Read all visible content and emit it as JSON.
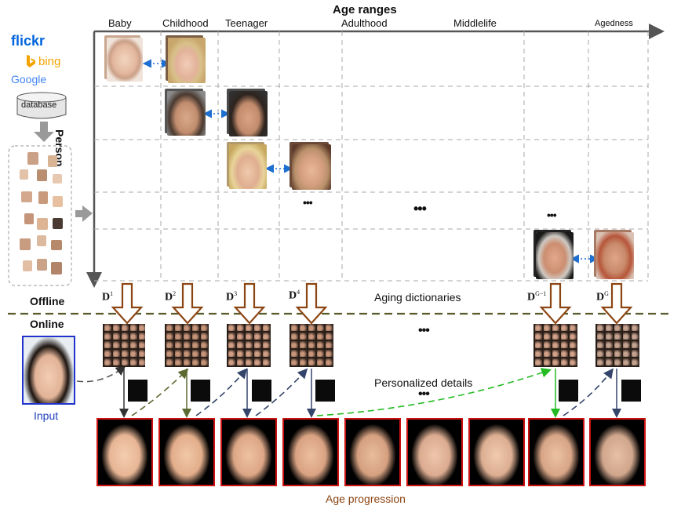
{
  "header": {
    "axis_title": "Age ranges",
    "person_label": "Person",
    "age_ranges": [
      "Baby",
      "Childhood",
      "Teenager",
      "Adulthood",
      "Middlelife",
      "Agedness"
    ]
  },
  "sources": {
    "flickr": "flickr",
    "bing": "bing",
    "google": "Google",
    "database": "database"
  },
  "stages": {
    "offline": "Offline",
    "online": "Online",
    "aging_dictionaries": "Aging dictionaries",
    "personalized_details": "Personalized details",
    "age_progression": "Age progression",
    "input": "Input"
  },
  "dictionaries": {
    "d1": "D",
    "d1_sup": "1",
    "d2": "D",
    "d2_sup": "2",
    "d3": "D",
    "d3_sup": "3",
    "d4": "D",
    "d4_sup": "4",
    "dg1": "D",
    "dg1_sup": "G−1",
    "dg": "D",
    "dg_sup": "G"
  },
  "ellipsis": "•••",
  "colors": {
    "grid": "#999999",
    "arrow_brown": "#8b4513",
    "offline_line": "#5a5a2a",
    "input_border": "#2233cc",
    "output_border": "#cc1111",
    "caption_brown": "#8b4513",
    "input_blue": "#1f3fbf",
    "dash_blue": "#1e6fd0",
    "dash_green": "#22bb22"
  }
}
